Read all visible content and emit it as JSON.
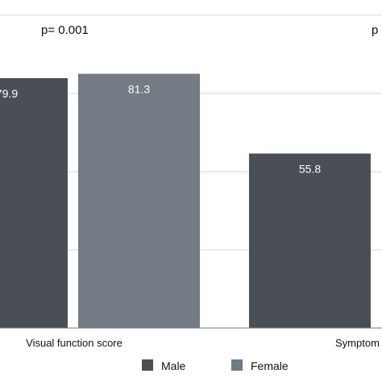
{
  "chart_data": {
    "type": "bar",
    "categories": [
      "Visual function score",
      "Symptom"
    ],
    "series": [
      {
        "name": "Male",
        "color": "#4a4f56",
        "values": [
          79.9,
          55.8
        ]
      },
      {
        "name": "Female",
        "color": "#737b84",
        "values": [
          81.3,
          null
        ]
      }
    ],
    "data_labels": [
      [
        "79.9",
        "55.8"
      ],
      [
        "81.3",
        ""
      ]
    ],
    "p_values": [
      "p= 0.001",
      "p"
    ],
    "ylim": [
      0,
      100
    ],
    "grid": true,
    "legend": "bottom"
  }
}
